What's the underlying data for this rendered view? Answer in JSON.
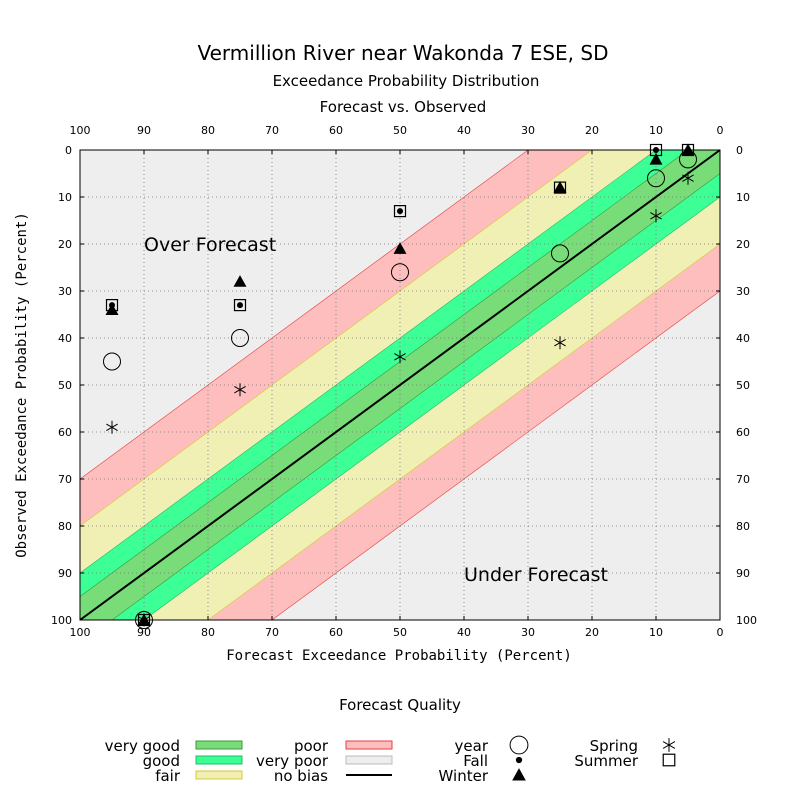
{
  "header": {
    "title": "Vermillion River near Wakonda 7 ESE, SD",
    "subtitle1": "Exceedance Probability Distribution",
    "subtitle2": "Forecast vs. Observed"
  },
  "chart_data": {
    "type": "scatter",
    "xlabel": "Forecast Exceedance Probability (Percent)",
    "ylabel": "Observed Exceedance Probability (Percent)",
    "xlim": [
      100,
      0
    ],
    "ylim": [
      100,
      0
    ],
    "ticks": [
      100,
      90,
      80,
      70,
      60,
      50,
      40,
      30,
      20,
      10,
      0
    ],
    "grid": true,
    "annotations": [
      "Over Forecast",
      "Under Forecast"
    ],
    "bands": [
      {
        "name": "very good",
        "half_width": 5,
        "color": "#78dc78"
      },
      {
        "name": "good",
        "half_width": 10,
        "color": "#3cff96"
      },
      {
        "name": "fair",
        "half_width": 20,
        "color": "#f0f0b4"
      },
      {
        "name": "poor",
        "half_width": 30,
        "color": "#ffbebe"
      }
    ],
    "series": [
      {
        "name": "year",
        "marker": "open-circle",
        "points": [
          [
            95,
            45
          ],
          [
            90,
            100
          ],
          [
            75,
            40
          ],
          [
            50,
            26
          ],
          [
            25,
            22
          ],
          [
            10,
            6
          ],
          [
            5,
            2
          ]
        ]
      },
      {
        "name": "Spring",
        "marker": "asterisk",
        "points": [
          [
            95,
            59
          ],
          [
            90,
            100
          ],
          [
            75,
            51
          ],
          [
            50,
            44
          ],
          [
            25,
            41
          ],
          [
            10,
            14
          ],
          [
            5,
            6
          ]
        ]
      },
      {
        "name": "Summer",
        "marker": "open-square",
        "points": [
          [
            95,
            33
          ],
          [
            90,
            100
          ],
          [
            75,
            33
          ],
          [
            50,
            13
          ],
          [
            25,
            8
          ],
          [
            10,
            0
          ],
          [
            5,
            0
          ]
        ]
      },
      {
        "name": "Fall",
        "marker": "dot",
        "points": [
          [
            95,
            33
          ],
          [
            90,
            100
          ],
          [
            75,
            33
          ],
          [
            50,
            13
          ],
          [
            25,
            8
          ],
          [
            10,
            0
          ],
          [
            5,
            0
          ]
        ]
      },
      {
        "name": "Winter",
        "marker": "filled-triangle",
        "points": [
          [
            95,
            34
          ],
          [
            90,
            100
          ],
          [
            75,
            28
          ],
          [
            50,
            21
          ],
          [
            25,
            8
          ],
          [
            10,
            2
          ],
          [
            5,
            0
          ]
        ]
      }
    ]
  },
  "legend": {
    "title": "Forecast Quality",
    "quality": [
      {
        "label": "very good",
        "color": "#78dc78",
        "stroke": "#3a9a3a"
      },
      {
        "label": "good",
        "color": "#3cff96",
        "stroke": "#22bb66"
      },
      {
        "label": "fair",
        "color": "#f0f0b4",
        "stroke": "#d8c830"
      },
      {
        "label": "poor",
        "color": "#ffbebe",
        "stroke": "#e04040"
      },
      {
        "label": "very poor",
        "color": "#eeeeee",
        "stroke": "#bbbbbb"
      },
      {
        "label": "no bias",
        "color": "#000000",
        "stroke": "#000000"
      }
    ],
    "markers": [
      {
        "label": "year",
        "marker": "open-circle"
      },
      {
        "label": "Fall",
        "marker": "dot"
      },
      {
        "label": "Winter",
        "marker": "filled-triangle"
      },
      {
        "label": "Spring",
        "marker": "asterisk"
      },
      {
        "label": "Summer",
        "marker": "open-square"
      }
    ]
  }
}
